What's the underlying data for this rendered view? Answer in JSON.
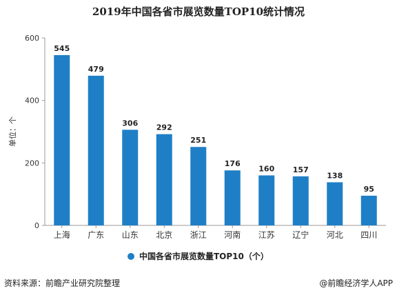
{
  "chart_data": {
    "type": "bar",
    "title": "2019年中国各省市展览数量TOP10统计情况",
    "ylabel": "单位：个",
    "xlabel": "",
    "categories": [
      "上海",
      "广东",
      "山东",
      "北京",
      "浙江",
      "河南",
      "江苏",
      "辽宁",
      "河北",
      "四川"
    ],
    "series": [
      {
        "name": "中国各省市展览数量TOP10（个）",
        "values": [
          545,
          479,
          306,
          292,
          251,
          176,
          160,
          157,
          138,
          95
        ]
      }
    ],
    "ylim": [
      0,
      600
    ],
    "yticks": [
      "0",
      "200",
      "400",
      "600"
    ],
    "grid": false,
    "legend": "bottom-center",
    "bar_color": "#1f7fc6"
  },
  "footer": {
    "source": "资料来源：前瞻产业研究院整理",
    "brand": "@前瞻经济学人APP"
  }
}
